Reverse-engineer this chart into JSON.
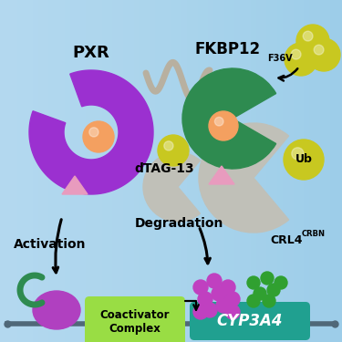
{
  "bg_color": "#aed8f0",
  "pxr_color": "#9B30D0",
  "pxr_label": "PXR",
  "fkbp_color": "#2E8B50",
  "fkbp_label": "FKBP12",
  "fkbp_superscript": "F36V",
  "ligand_color": "#F4A060",
  "linker_color": "#B8B0A0",
  "dtag_label": "dTAG-13",
  "pink_color": "#E89BBE",
  "ub_color": "#C8C820",
  "ub_label": "Ub",
  "crl4_color": "#C0C0B8",
  "crl4_label": "CRL4",
  "crl4_superscript": "CRBN",
  "activation_label": "Activation",
  "degradation_label": "Degradation",
  "coactivator_color": "#99DD44",
  "coactivator_label": "Coactivator\nComplex",
  "cyp3a4_color": "#20A090",
  "cyp3a4_label": "CYP3A4",
  "purple_dots_color": "#C040C0",
  "green_dots_color": "#30A030",
  "purple_oval_color": "#B040C0",
  "green_hook_color": "#2E8B50",
  "dna_color": "#506878"
}
